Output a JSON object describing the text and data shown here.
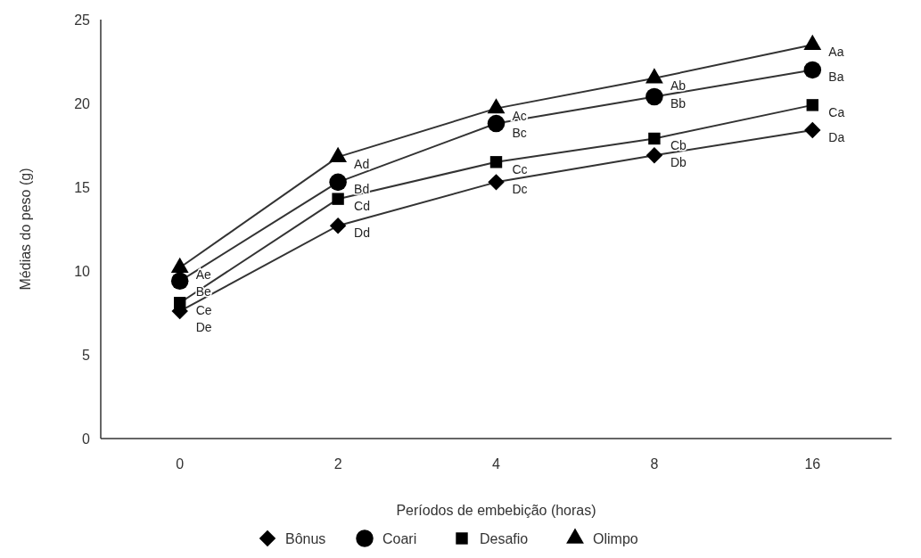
{
  "chart_data": {
    "type": "line",
    "xlabel": "Períodos de embebição (horas)",
    "ylabel": "Médias do peso (g)",
    "categories": [
      "0",
      "2",
      "4",
      "8",
      "16"
    ],
    "ylim": [
      0,
      25
    ],
    "yticks": [
      0,
      5,
      10,
      15,
      20,
      25
    ],
    "grid": false,
    "legend": "bottom",
    "line_style": "solid",
    "series": [
      {
        "name": "Bônus",
        "color": "#000000",
        "marker": "diamond",
        "values": [
          7.6,
          12.7,
          15.3,
          16.9,
          18.4
        ]
      },
      {
        "name": "Coari",
        "color": "#000000",
        "marker": "circle",
        "values": [
          9.4,
          15.3,
          18.8,
          20.4,
          22.0
        ]
      },
      {
        "name": "Desafio",
        "color": "#000000",
        "marker": "square",
        "values": [
          8.1,
          14.3,
          16.5,
          17.9,
          19.9
        ]
      },
      {
        "name": "Olimpo",
        "color": "#000000",
        "marker": "triangle",
        "values": [
          10.2,
          16.8,
          19.7,
          21.5,
          23.5
        ]
      }
    ],
    "annotations": [
      {
        "text": "Ae",
        "x": "0",
        "y": 10.2
      },
      {
        "text": "Ad",
        "x": "2",
        "y": 16.8
      },
      {
        "text": "Ac",
        "x": "4",
        "y": 19.7
      },
      {
        "text": "Ab",
        "x": "8",
        "y": 21.5
      },
      {
        "text": "Aa",
        "x": "16",
        "y": 23.5
      },
      {
        "text": "Be",
        "x": "0",
        "y": 9.4
      },
      {
        "text": "Bd",
        "x": "2",
        "y": 15.3
      },
      {
        "text": "Bc",
        "x": "4",
        "y": 18.8
      },
      {
        "text": "Bb",
        "x": "8",
        "y": 20.4
      },
      {
        "text": "Ba",
        "x": "16",
        "y": 22.0
      },
      {
        "text": "Ce",
        "x": "0",
        "y": 8.1
      },
      {
        "text": "Cd",
        "x": "2",
        "y": 14.3
      },
      {
        "text": "Cc",
        "x": "4",
        "y": 16.5
      },
      {
        "text": "Cb",
        "x": "8",
        "y": 17.9
      },
      {
        "text": "Ca",
        "x": "16",
        "y": 19.9
      },
      {
        "text": "De",
        "x": "0",
        "y": 7.6
      },
      {
        "text": "Dd",
        "x": "2",
        "y": 12.7
      },
      {
        "text": "Dc",
        "x": "4",
        "y": 15.3
      },
      {
        "text": "Db",
        "x": "8",
        "y": 16.9
      },
      {
        "text": "Da",
        "x": "16",
        "y": 18.4
      }
    ]
  }
}
